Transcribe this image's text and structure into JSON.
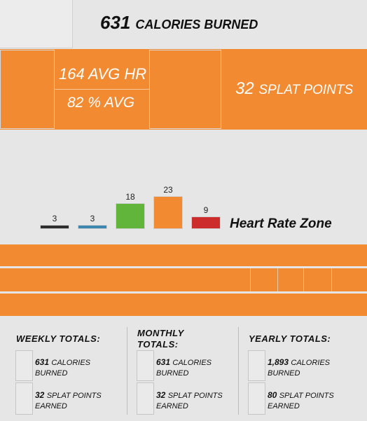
{
  "header": {
    "calories_value": "631",
    "calories_label": "CALORIES BURNED"
  },
  "stats": {
    "avg_hr": "164 AVG HR",
    "avg_pct": "82 % AVG",
    "splat_value": "32",
    "splat_label": "SPLAT POINTS"
  },
  "chart_data": {
    "type": "bar",
    "xlabel": "Heart Rate Zone",
    "values": [
      3,
      3,
      18,
      23,
      9
    ],
    "value_labels": [
      "3",
      "3",
      "18",
      "23",
      "9"
    ],
    "colors": [
      "#2e2e2e",
      "#3d86b0",
      "#62b53b",
      "#f28a31",
      "#cc2c2c"
    ],
    "ylim": [
      0,
      23
    ]
  },
  "totals": {
    "weekly": {
      "heading": "WEEKLY TOTALS:",
      "calories_value": "631",
      "calories_label1": "CALORIES",
      "calories_label2": "BURNED",
      "splat_value": "32",
      "splat_label1": "SPLAT POINTS",
      "splat_label2": "EARNED"
    },
    "monthly": {
      "heading1": "MONTHLY",
      "heading2": "TOTALS:",
      "calories_value": "631",
      "calories_label1": "CALORIES",
      "calories_label2": "BURNED",
      "splat_value": "32",
      "splat_label1": "SPLAT POINTS",
      "splat_label2": "EARNED"
    },
    "yearly": {
      "heading": "YEARLY TOTALS:",
      "calories_value": "1,893",
      "calories_label1": "CALORIES",
      "calories_label2": "BURNED",
      "splat_value": "80",
      "splat_label1": "SPLAT POINTS",
      "splat_label2": "EARNED"
    }
  }
}
